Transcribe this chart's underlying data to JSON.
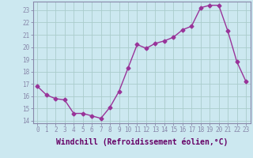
{
  "x": [
    0,
    1,
    2,
    3,
    4,
    5,
    6,
    7,
    8,
    9,
    10,
    11,
    12,
    13,
    14,
    15,
    16,
    17,
    18,
    19,
    20,
    21,
    22,
    23
  ],
  "y": [
    16.8,
    16.1,
    15.8,
    15.7,
    14.6,
    14.6,
    14.4,
    14.2,
    15.1,
    16.4,
    18.3,
    20.2,
    19.9,
    20.3,
    20.5,
    20.8,
    21.4,
    21.7,
    23.2,
    23.4,
    23.4,
    21.3,
    18.8,
    17.2
  ],
  "line_color": "#993399",
  "marker": "D",
  "markersize": 2.5,
  "linewidth": 1.0,
  "xlabel": "Windchill (Refroidissement éolien,°C)",
  "xlabel_fontsize": 7,
  "yticks": [
    14,
    15,
    16,
    17,
    18,
    19,
    20,
    21,
    22,
    23
  ],
  "xticks": [
    0,
    1,
    2,
    3,
    4,
    5,
    6,
    7,
    8,
    9,
    10,
    11,
    12,
    13,
    14,
    15,
    16,
    17,
    18,
    19,
    20,
    21,
    22,
    23
  ],
  "ylim": [
    13.8,
    23.7
  ],
  "xlim": [
    -0.5,
    23.5
  ],
  "background_color": "#cce8f0",
  "grid_color": "#aacccc",
  "axis_color": "#8888aa",
  "tick_fontsize": 5.5,
  "tick_label_color": "#660066"
}
